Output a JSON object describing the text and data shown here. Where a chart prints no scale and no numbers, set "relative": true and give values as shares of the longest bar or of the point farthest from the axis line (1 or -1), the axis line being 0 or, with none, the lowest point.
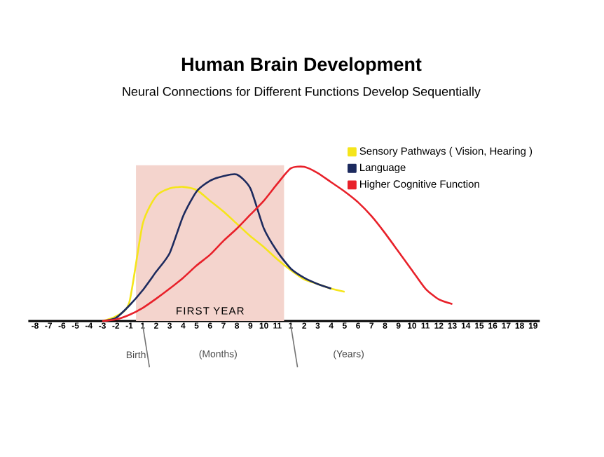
{
  "chart_data": {
    "type": "line",
    "title": "Human Brain Development",
    "subtitle": "Neural Connections for Different Functions Develop Sequentially",
    "categories": [
      "-8",
      "-7",
      "-6",
      "-5",
      "-4",
      "-3",
      "-2",
      "-1",
      "1",
      "2",
      "3",
      "4",
      "5",
      "6",
      "7",
      "8",
      "9",
      "10",
      "11",
      "1",
      "2",
      "3",
      "4",
      "5",
      "6",
      "7",
      "8",
      "9",
      "10",
      "11",
      "12",
      "13",
      "14",
      "15",
      "16",
      "17",
      "18",
      "19"
    ],
    "relative": true,
    "series": [
      {
        "name": "Sensory Pathways ( Vision, Hearing )",
        "color": "#f5e51b",
        "values": [
          null,
          null,
          null,
          null,
          null,
          0,
          0.03,
          0.12,
          0.63,
          0.81,
          0.86,
          0.87,
          0.85,
          0.78,
          0.71,
          0.63,
          0.55,
          0.48,
          0.4,
          0.33,
          0.27,
          0.24,
          0.21,
          0.19,
          null,
          null,
          null,
          null,
          null,
          null,
          null,
          null,
          null,
          null,
          null,
          null,
          null,
          null
        ]
      },
      {
        "name": "Language",
        "color": "#1c2a5e",
        "values": [
          null,
          null,
          null,
          null,
          null,
          0,
          0.02,
          0.1,
          0.2,
          0.32,
          0.44,
          0.68,
          0.84,
          0.91,
          0.94,
          0.95,
          0.86,
          0.6,
          0.45,
          0.34,
          0.28,
          0.24,
          0.21,
          null,
          null,
          null,
          null,
          null,
          null,
          null,
          null,
          null,
          null,
          null,
          null,
          null,
          null,
          null
        ]
      },
      {
        "name": "Higher Cognitive Function",
        "color": "#e8212a",
        "values": [
          null,
          null,
          null,
          null,
          null,
          0,
          0.01,
          0.04,
          0.085,
          0.145,
          0.21,
          0.28,
          0.36,
          0.43,
          0.52,
          0.6,
          0.69,
          0.78,
          0.89,
          0.99,
          1.0,
          0.96,
          0.9,
          0.84,
          0.77,
          0.68,
          0.57,
          0.45,
          0.33,
          0.21,
          0.14,
          0.11,
          null,
          null,
          null,
          null,
          null,
          null
        ]
      }
    ],
    "bands": [
      {
        "axis": "x",
        "from": "1",
        "to": "11",
        "label": "FIRST YEAR",
        "color": "#f4d4cd"
      }
    ],
    "annotations": [
      "Birth",
      "(Months)",
      "(Years)"
    ],
    "legend": "top right",
    "marker": "none",
    "line_style": "solid"
  }
}
